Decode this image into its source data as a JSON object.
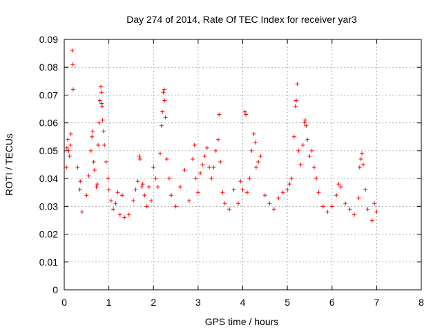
{
  "chart_data": {
    "type": "scatter",
    "title": "Day 274 of 2014, Rate Of TEC Index for receiver yar3",
    "xlabel": "GPS time / hours",
    "ylabel": "ROTI / TECUs",
    "xlim": [
      0,
      8
    ],
    "ylim": [
      0,
      0.09
    ],
    "xticks": [
      "0",
      "1",
      "2",
      "3",
      "4",
      "5",
      "6",
      "7",
      "8"
    ],
    "yticks": [
      "0",
      "0.01",
      "0.02",
      "0.03",
      "0.04",
      "0.05",
      "0.06",
      "0.07",
      "0.08",
      "0.09"
    ],
    "grid": true,
    "marker": "+",
    "series_color": "#ff0000",
    "series": [
      {
        "name": "ROTI",
        "points": [
          [
            0.05,
            0.044
          ],
          [
            0.06,
            0.051
          ],
          [
            0.08,
            0.054
          ],
          [
            0.1,
            0.05
          ],
          [
            0.12,
            0.048
          ],
          [
            0.14,
            0.052
          ],
          [
            0.15,
            0.056
          ],
          [
            0.18,
            0.086
          ],
          [
            0.19,
            0.081
          ],
          [
            0.2,
            0.072
          ],
          [
            0.3,
            0.044
          ],
          [
            0.35,
            0.036
          ],
          [
            0.36,
            0.039
          ],
          [
            0.4,
            0.028
          ],
          [
            0.5,
            0.034
          ],
          [
            0.55,
            0.041
          ],
          [
            0.6,
            0.05
          ],
          [
            0.62,
            0.055
          ],
          [
            0.64,
            0.057
          ],
          [
            0.66,
            0.046
          ],
          [
            0.68,
            0.043
          ],
          [
            0.72,
            0.037
          ],
          [
            0.74,
            0.038
          ],
          [
            0.76,
            0.052
          ],
          [
            0.78,
            0.06
          ],
          [
            0.8,
            0.068
          ],
          [
            0.82,
            0.073
          ],
          [
            0.83,
            0.071
          ],
          [
            0.84,
            0.067
          ],
          [
            0.85,
            0.066
          ],
          [
            0.86,
            0.061
          ],
          [
            0.88,
            0.057
          ],
          [
            0.9,
            0.052
          ],
          [
            0.94,
            0.046
          ],
          [
            0.98,
            0.04
          ],
          [
            1.0,
            0.036
          ],
          [
            1.05,
            0.032
          ],
          [
            1.1,
            0.029
          ],
          [
            1.15,
            0.031
          ],
          [
            1.2,
            0.035
          ],
          [
            1.25,
            0.027
          ],
          [
            1.3,
            0.034
          ],
          [
            1.35,
            0.026
          ],
          [
            1.45,
            0.027
          ],
          [
            1.55,
            0.032
          ],
          [
            1.6,
            0.036
          ],
          [
            1.65,
            0.039
          ],
          [
            1.68,
            0.048
          ],
          [
            1.7,
            0.047
          ],
          [
            1.74,
            0.037
          ],
          [
            1.76,
            0.038
          ],
          [
            1.8,
            0.034
          ],
          [
            1.85,
            0.03
          ],
          [
            1.9,
            0.037
          ],
          [
            1.95,
            0.032
          ],
          [
            2.0,
            0.044
          ],
          [
            2.05,
            0.04
          ],
          [
            2.1,
            0.037
          ],
          [
            2.15,
            0.049
          ],
          [
            2.18,
            0.059
          ],
          [
            2.2,
            0.064
          ],
          [
            2.22,
            0.071
          ],
          [
            2.24,
            0.072
          ],
          [
            2.25,
            0.068
          ],
          [
            2.27,
            0.062
          ],
          [
            2.3,
            0.047
          ],
          [
            2.35,
            0.04
          ],
          [
            2.4,
            0.034
          ],
          [
            2.5,
            0.03
          ],
          [
            2.6,
            0.037
          ],
          [
            2.7,
            0.043
          ],
          [
            2.8,
            0.032
          ],
          [
            2.88,
            0.047
          ],
          [
            2.92,
            0.052
          ],
          [
            2.95,
            0.04
          ],
          [
            3.0,
            0.035
          ],
          [
            3.05,
            0.042
          ],
          [
            3.1,
            0.045
          ],
          [
            3.15,
            0.048
          ],
          [
            3.2,
            0.051
          ],
          [
            3.25,
            0.044
          ],
          [
            3.3,
            0.04
          ],
          [
            3.35,
            0.044
          ],
          [
            3.4,
            0.05
          ],
          [
            3.45,
            0.054
          ],
          [
            3.47,
            0.063
          ],
          [
            3.5,
            0.046
          ],
          [
            3.55,
            0.035
          ],
          [
            3.6,
            0.031
          ],
          [
            3.7,
            0.029
          ],
          [
            3.8,
            0.036
          ],
          [
            3.9,
            0.031
          ],
          [
            3.95,
            0.039
          ],
          [
            4.0,
            0.036
          ],
          [
            4.05,
            0.064
          ],
          [
            4.07,
            0.063
          ],
          [
            4.1,
            0.035
          ],
          [
            4.15,
            0.04
          ],
          [
            4.2,
            0.05
          ],
          [
            4.25,
            0.056
          ],
          [
            4.28,
            0.053
          ],
          [
            4.3,
            0.044
          ],
          [
            4.35,
            0.046
          ],
          [
            4.4,
            0.048
          ],
          [
            4.5,
            0.034
          ],
          [
            4.6,
            0.031
          ],
          [
            4.7,
            0.029
          ],
          [
            4.8,
            0.033
          ],
          [
            4.9,
            0.035
          ],
          [
            5.0,
            0.036
          ],
          [
            5.05,
            0.038
          ],
          [
            5.1,
            0.04
          ],
          [
            5.15,
            0.055
          ],
          [
            5.18,
            0.066
          ],
          [
            5.2,
            0.068
          ],
          [
            5.22,
            0.074
          ],
          [
            5.25,
            0.05
          ],
          [
            5.3,
            0.045
          ],
          [
            5.35,
            0.052
          ],
          [
            5.38,
            0.06
          ],
          [
            5.4,
            0.061
          ],
          [
            5.42,
            0.059
          ],
          [
            5.45,
            0.054
          ],
          [
            5.5,
            0.048
          ],
          [
            5.55,
            0.05
          ],
          [
            5.6,
            0.044
          ],
          [
            5.65,
            0.04
          ],
          [
            5.7,
            0.035
          ],
          [
            5.8,
            0.03
          ],
          [
            5.9,
            0.028
          ],
          [
            6.0,
            0.03
          ],
          [
            6.1,
            0.034
          ],
          [
            6.15,
            0.038
          ],
          [
            6.2,
            0.037
          ],
          [
            6.3,
            0.031
          ],
          [
            6.4,
            0.029
          ],
          [
            6.5,
            0.027
          ],
          [
            6.6,
            0.033
          ],
          [
            6.62,
            0.044
          ],
          [
            6.65,
            0.047
          ],
          [
            6.67,
            0.049
          ],
          [
            6.7,
            0.045
          ],
          [
            6.75,
            0.036
          ],
          [
            6.8,
            0.029
          ],
          [
            6.9,
            0.025
          ],
          [
            6.95,
            0.031
          ],
          [
            7.0,
            0.028
          ]
        ]
      }
    ]
  }
}
